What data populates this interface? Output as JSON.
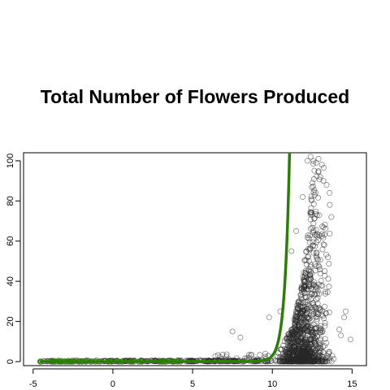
{
  "chart_data": {
    "type": "scatter",
    "title": "Total Number of Flowers Produced",
    "xlabel": "",
    "ylabel": "",
    "xlim": [
      -5.6,
      15.9
    ],
    "ylim": [
      -2,
      104
    ],
    "x_ticks": [
      -5,
      0,
      5,
      10,
      15
    ],
    "y_ticks": [
      0,
      20,
      40,
      60,
      80,
      100
    ],
    "grid": false,
    "series": [
      {
        "kind": "points",
        "color": "#333333",
        "cloud": {
          "zero_band": {
            "x_range": [
              -4.6,
              10.0
            ],
            "y": 0
          },
          "bulk": {
            "x_range": [
              10.0,
              14.0
            ],
            "y_range": [
              0,
              104
            ],
            "peak_x": 12.5
          }
        },
        "sample_points": [
          [
            7.5,
            15
          ],
          [
            8.0,
            12
          ],
          [
            9.8,
            22
          ],
          [
            10.5,
            25
          ],
          [
            11.2,
            55
          ],
          [
            11.5,
            65
          ],
          [
            11.9,
            82
          ],
          [
            12.2,
            100
          ],
          [
            12.4,
            102
          ],
          [
            12.9,
            101
          ],
          [
            13.0,
            92
          ],
          [
            13.2,
            90
          ],
          [
            13.4,
            88
          ],
          [
            13.6,
            78
          ],
          [
            13.7,
            72
          ],
          [
            14.5,
            22
          ],
          [
            14.6,
            25
          ],
          [
            14.9,
            11
          ],
          [
            14.3,
            13
          ],
          [
            14.2,
            16
          ]
        ]
      },
      {
        "kind": "fitted-curve",
        "color": "#2e7d0a",
        "model": "exponential",
        "x_range": [
          -4.6,
          11.1
        ],
        "anchor_points": [
          [
            10.0,
            3
          ],
          [
            10.5,
            18
          ],
          [
            11.0,
            80
          ]
        ]
      }
    ]
  }
}
